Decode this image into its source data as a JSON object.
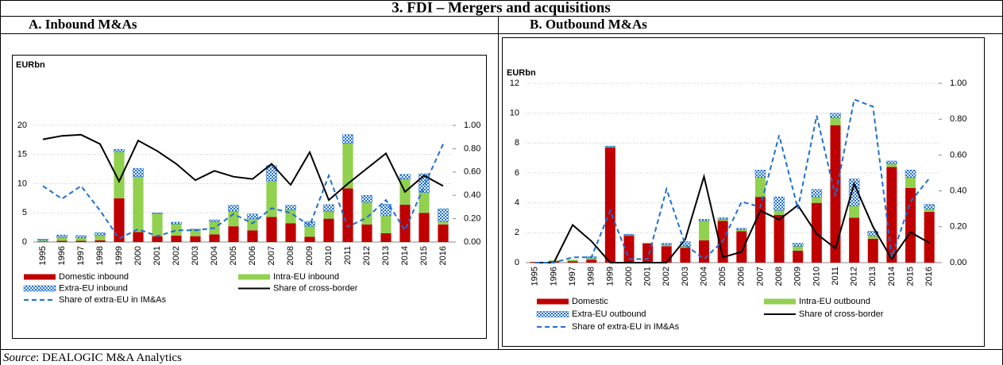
{
  "title": "3. FDI – Mergers and acquisitions",
  "source": {
    "label": "Source",
    "text": ": DEALOGIC M&A Analytics"
  },
  "chart_data": [
    {
      "type": "bar",
      "title": "A.   Inbound M&As",
      "y_label": "EURbn",
      "stacked": true,
      "grid": true,
      "categories": [
        "1995",
        "1996",
        "1997",
        "1998",
        "1999",
        "2000",
        "2001",
        "2002",
        "2003",
        "2004",
        "2005",
        "2006",
        "2007",
        "2008",
        "2009",
        "2010",
        "2011",
        "2012",
        "2013",
        "2014",
        "2015",
        "2016"
      ],
      "ylim": [
        0,
        20
      ],
      "yticks": [
        0,
        5,
        10,
        15,
        20
      ],
      "y2lim": [
        0,
        1
      ],
      "y2ticks": [
        {
          "value": 0,
          "label": "0.00"
        },
        {
          "value": 0.2,
          "label": "0.20"
        },
        {
          "value": 0.4,
          "label": "0.40"
        },
        {
          "value": 0.6,
          "label": "0.60"
        },
        {
          "value": 0.8,
          "label": "0.80"
        },
        {
          "value": 1,
          "label": "1.00"
        }
      ],
      "series": [
        {
          "name": "Domestic inbound",
          "kind": "bar",
          "color": "#c00000",
          "values": [
            0.1,
            0.2,
            0.2,
            0.3,
            7.5,
            1.7,
            1.0,
            1.1,
            1.0,
            1.3,
            2.7,
            2.0,
            4.3,
            3.2,
            0.9,
            4.0,
            9.2,
            3.0,
            1.5,
            6.4,
            5.0,
            3.0
          ]
        },
        {
          "name": "Intra-EU inbound",
          "kind": "bar",
          "color": "#92d050",
          "values": [
            0.2,
            0.6,
            0.5,
            0.8,
            8.0,
            9.5,
            3.9,
            2.0,
            1.1,
            2.2,
            2.6,
            2.0,
            6.2,
            2.3,
            1.8,
            1.2,
            7.7,
            3.8,
            3.0,
            4.4,
            3.5,
            0.5
          ]
        },
        {
          "name": "Extra-EU inbound",
          "kind": "bar",
          "color": "#1f6fd0",
          "fill_pattern": "checker",
          "values": [
            0.2,
            0.4,
            0.4,
            0.5,
            0.4,
            1.4,
            0.1,
            0.3,
            0.1,
            0.3,
            1.0,
            0.8,
            2.6,
            0.8,
            0.8,
            1.2,
            1.5,
            1.2,
            2.0,
            0.8,
            3.2,
            2.2
          ]
        },
        {
          "name": "Share of cross-border",
          "kind": "line",
          "axis": "y2",
          "color": "#000000",
          "values": [
            0.88,
            0.91,
            0.92,
            0.84,
            0.52,
            0.87,
            0.78,
            0.67,
            0.53,
            0.61,
            0.56,
            0.54,
            0.67,
            0.49,
            0.77,
            0.36,
            0.5,
            0.63,
            0.76,
            0.43,
            0.57,
            0.48
          ]
        },
        {
          "name": "Share of extra-EU in IM&As",
          "kind": "line",
          "axis": "y2",
          "color": "#1f6fd0",
          "line_style": "dashed",
          "values": [
            0.48,
            0.37,
            0.48,
            0.27,
            0.03,
            0.11,
            0.05,
            0.1,
            0.1,
            0.12,
            0.24,
            0.16,
            0.29,
            0.25,
            0.14,
            0.57,
            0.13,
            0.21,
            0.36,
            0.1,
            0.48,
            0.84
          ]
        }
      ]
    },
    {
      "type": "bar",
      "title": "B.   Outbound M&As",
      "y_label": "EURbn",
      "stacked": true,
      "grid": true,
      "categories": [
        "1995",
        "1996",
        "1997",
        "1998",
        "1999",
        "2000",
        "2001",
        "2002",
        "2003",
        "2004",
        "2005",
        "2006",
        "2007",
        "2008",
        "2009",
        "2010",
        "2011",
        "2012",
        "2013",
        "2014",
        "2015",
        "2016"
      ],
      "ylim": [
        0,
        12
      ],
      "yticks": [
        0,
        2,
        4,
        6,
        8,
        10,
        12
      ],
      "y2lim": [
        0,
        1
      ],
      "y2ticks": [
        {
          "value": 0,
          "label": "0.00"
        },
        {
          "value": 0.2,
          "label": "0.20"
        },
        {
          "value": 0.4,
          "label": "0.40"
        },
        {
          "value": 0.6,
          "label": "0.60"
        },
        {
          "value": 0.8,
          "label": "0.80"
        },
        {
          "value": 1,
          "label": "1.00"
        }
      ],
      "series": [
        {
          "name": "Domestic",
          "kind": "bar",
          "color": "#c00000",
          "values": [
            0.05,
            0.1,
            0.1,
            0.2,
            7.7,
            1.8,
            1.3,
            1.1,
            1.0,
            1.5,
            2.8,
            2.1,
            4.4,
            3.2,
            0.8,
            4.0,
            9.2,
            3.0,
            1.6,
            6.4,
            5.0,
            3.4
          ]
        },
        {
          "name": "Intra-EU outbound",
          "kind": "bar",
          "color": "#92d050",
          "values": [
            0,
            0.05,
            0.1,
            0.1,
            0.05,
            0.05,
            0,
            0.1,
            0.1,
            1.3,
            0.1,
            0.1,
            1.3,
            0.3,
            0.3,
            0.4,
            0.5,
            0.8,
            0.2,
            0.2,
            0.7,
            0.2
          ]
        },
        {
          "name": "Extra-EU outbound",
          "kind": "bar",
          "color": "#1f6fd0",
          "fill_pattern": "checker",
          "values": [
            0,
            0,
            0,
            0.1,
            0.05,
            0.05,
            0,
            0.1,
            0.3,
            0.1,
            0.1,
            0.1,
            0.5,
            0.9,
            0.2,
            0.5,
            0.3,
            1.8,
            0.3,
            0.2,
            0.5,
            0.3
          ]
        },
        {
          "name": "Share of cross-border",
          "kind": "line",
          "axis": "y2",
          "color": "#000000",
          "values": [
            0,
            0,
            0.21,
            0.12,
            0,
            0,
            0,
            0,
            0.13,
            0.48,
            0.03,
            0.06,
            0.29,
            0.24,
            0.32,
            0.16,
            0.08,
            0.44,
            0.2,
            0.02,
            0.17,
            0.11
          ]
        },
        {
          "name": "Share of extra-EU in IM&As",
          "kind": "line",
          "axis": "y2",
          "color": "#1f6fd0",
          "line_style": "dashed",
          "values": [
            0,
            0,
            0.03,
            0.03,
            0.29,
            0.02,
            0.02,
            0.41,
            0.1,
            0.02,
            0.12,
            0.34,
            0.31,
            0.71,
            0.3,
            0.82,
            0.37,
            0.91,
            0.87,
            0.03,
            0.34,
            0.47
          ]
        }
      ]
    }
  ]
}
